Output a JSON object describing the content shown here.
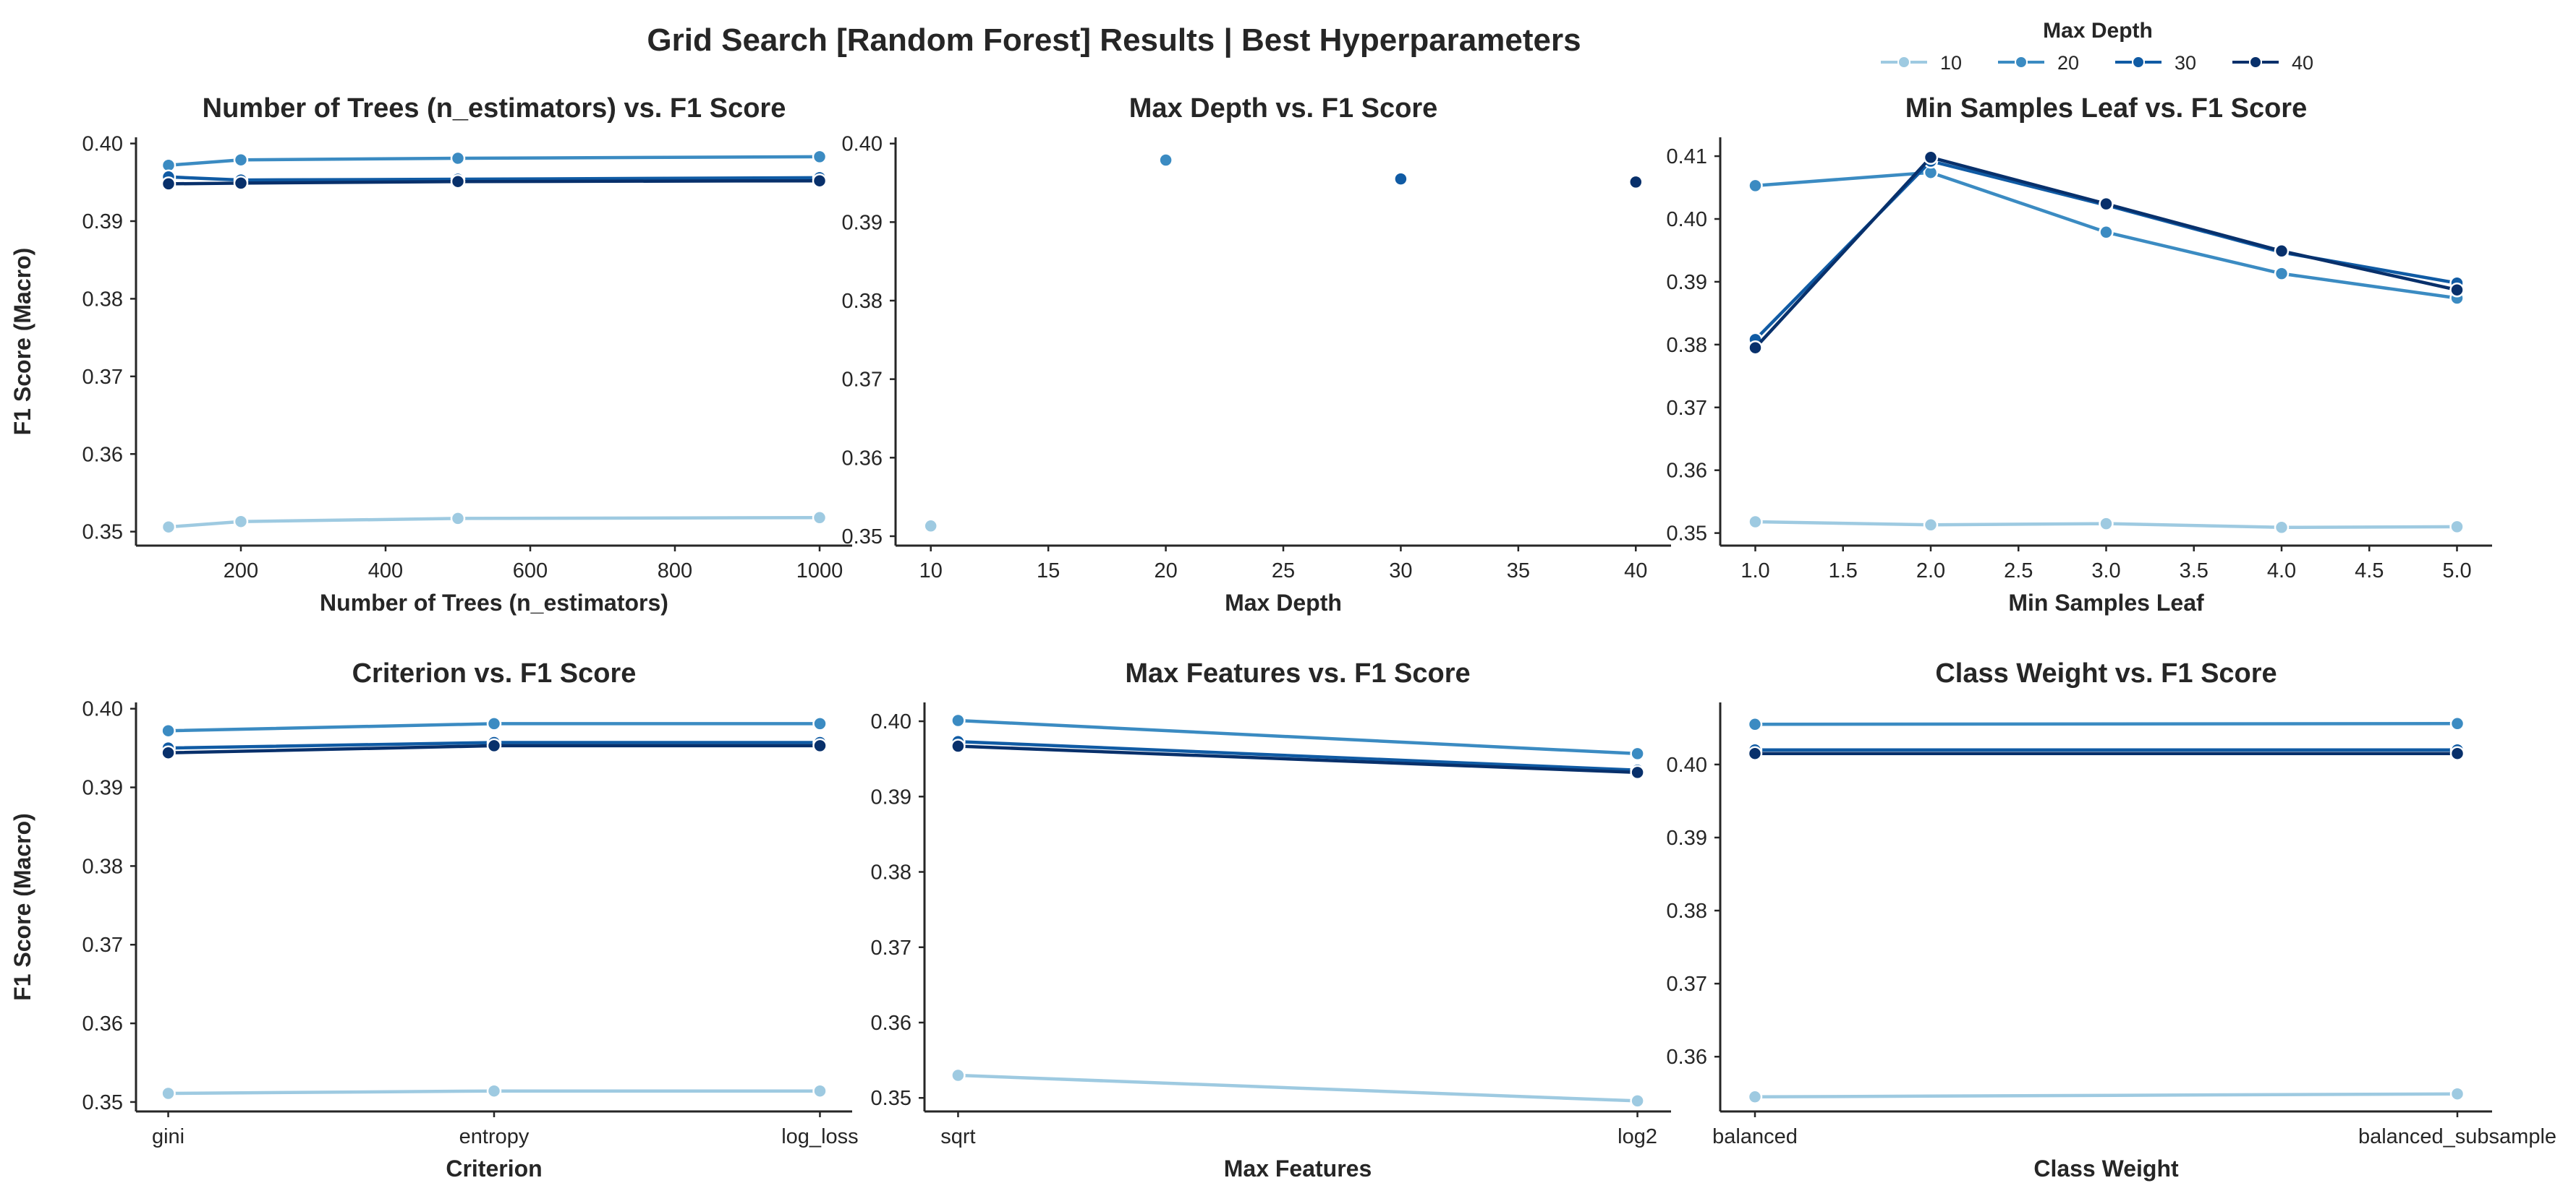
{
  "figure": {
    "title": "Grid Search [Random Forest] Results | Best Hyperparameters",
    "legend": {
      "title": "Max Depth",
      "placement": "top-right",
      "entries": [
        {
          "label": "10",
          "color": "#9ecae1"
        },
        {
          "label": "20",
          "color": "#3b8bc2"
        },
        {
          "label": "30",
          "color": "#105ba4"
        },
        {
          "label": "40",
          "color": "#08306b"
        }
      ]
    }
  },
  "chart_data": [
    {
      "type": "line",
      "title": "Number of Trees (n_estimators) vs. F1 Score",
      "xlabel": "Number of Trees (n_estimators)",
      "ylabel": "F1 Score (Macro)",
      "x_kind": "numeric",
      "xlim": [
        55,
        1045
      ],
      "xticks": [
        200,
        400,
        600,
        800,
        1000
      ],
      "xtick_labels": [
        "200",
        "400",
        "600",
        "800",
        "1000"
      ],
      "ylim": [
        0.3482,
        0.4008
      ],
      "yticks": [
        0.35,
        0.36,
        0.37,
        0.38,
        0.39,
        0.4
      ],
      "ytick_labels": [
        "0.35",
        "0.36",
        "0.37",
        "0.38",
        "0.39",
        "0.40"
      ],
      "series": [
        {
          "name": "10",
          "x": [
            100,
            200,
            500,
            1000
          ],
          "y": [
            0.3506,
            0.3513,
            0.3517,
            0.3518
          ]
        },
        {
          "name": "20",
          "x": [
            100,
            200,
            500,
            1000
          ],
          "y": [
            0.3972,
            0.3979,
            0.3981,
            0.3983
          ]
        },
        {
          "name": "30",
          "x": [
            100,
            200,
            500,
            1000
          ],
          "y": [
            0.3957,
            0.3953,
            0.3954,
            0.3956
          ]
        },
        {
          "name": "40",
          "x": [
            100,
            200,
            500,
            1000
          ],
          "y": [
            0.3948,
            0.3949,
            0.3951,
            0.3952
          ]
        }
      ],
      "grid": false
    },
    {
      "type": "scatter",
      "title": "Max Depth vs. F1 Score",
      "xlabel": "Max Depth",
      "ylabel": "",
      "x_kind": "numeric",
      "xlim": [
        8.5,
        41.5
      ],
      "xticks": [
        10,
        15,
        20,
        25,
        30,
        35,
        40
      ],
      "xtick_labels": [
        "10",
        "15",
        "20",
        "25",
        "30",
        "35",
        "40"
      ],
      "ylim": [
        0.3488,
        0.4008
      ],
      "yticks": [
        0.35,
        0.36,
        0.37,
        0.38,
        0.39,
        0.4
      ],
      "ytick_labels": [
        "0.35",
        "0.36",
        "0.37",
        "0.38",
        "0.39",
        "0.40"
      ],
      "series": [
        {
          "name": "10",
          "x": [
            10
          ],
          "y": [
            0.3513
          ]
        },
        {
          "name": "20",
          "x": [
            20
          ],
          "y": [
            0.3979
          ]
        },
        {
          "name": "30",
          "x": [
            30
          ],
          "y": [
            0.3955
          ]
        },
        {
          "name": "40",
          "x": [
            40
          ],
          "y": [
            0.3951
          ]
        }
      ],
      "grid": false
    },
    {
      "type": "line",
      "title": "Min Samples Leaf vs. F1 Score",
      "xlabel": "Min Samples Leaf",
      "ylabel": "",
      "x_kind": "numeric",
      "xlim": [
        0.8,
        5.2
      ],
      "xticks": [
        1.0,
        1.5,
        2.0,
        2.5,
        3.0,
        3.5,
        4.0,
        4.5,
        5.0
      ],
      "xtick_labels": [
        "1.0",
        "1.5",
        "2.0",
        "2.5",
        "3.0",
        "3.5",
        "4.0",
        "4.5",
        "5.0"
      ],
      "ylim": [
        0.348,
        0.413
      ],
      "yticks": [
        0.35,
        0.36,
        0.37,
        0.38,
        0.39,
        0.4,
        0.41
      ],
      "ytick_labels": [
        "0.35",
        "0.36",
        "0.37",
        "0.38",
        "0.39",
        "0.40",
        "0.41"
      ],
      "series": [
        {
          "name": "10",
          "x": [
            1,
            2,
            3,
            4,
            5
          ],
          "y": [
            0.3518,
            0.3513,
            0.3515,
            0.3509,
            0.351
          ]
        },
        {
          "name": "20",
          "x": [
            1,
            2,
            3,
            4,
            5
          ],
          "y": [
            0.4053,
            0.4074,
            0.3979,
            0.3913,
            0.3874
          ]
        },
        {
          "name": "30",
          "x": [
            1,
            2,
            3,
            4,
            5
          ],
          "y": [
            0.3808,
            0.4092,
            0.4022,
            0.3947,
            0.3898
          ]
        },
        {
          "name": "40",
          "x": [
            1,
            2,
            3,
            4,
            5
          ],
          "y": [
            0.3795,
            0.4098,
            0.4024,
            0.3949,
            0.3887
          ]
        }
      ],
      "grid": false
    },
    {
      "type": "line",
      "title": "Criterion vs. F1 Score",
      "xlabel": "Criterion",
      "ylabel": "F1 Score (Macro)",
      "x_kind": "categorical",
      "categories": [
        "gini",
        "entropy",
        "log_loss"
      ],
      "ylim": [
        0.3488,
        0.4008
      ],
      "yticks": [
        0.35,
        0.36,
        0.37,
        0.38,
        0.39,
        0.4
      ],
      "ytick_labels": [
        "0.35",
        "0.36",
        "0.37",
        "0.38",
        "0.39",
        "0.40"
      ],
      "series": [
        {
          "name": "10",
          "values": [
            0.3511,
            0.3514,
            0.3514
          ]
        },
        {
          "name": "20",
          "values": [
            0.3972,
            0.3981,
            0.3981
          ]
        },
        {
          "name": "30",
          "values": [
            0.395,
            0.3957,
            0.3957
          ]
        },
        {
          "name": "40",
          "values": [
            0.3944,
            0.3953,
            0.3953
          ]
        }
      ],
      "grid": false
    },
    {
      "type": "line",
      "title": "Max Features vs. F1 Score",
      "xlabel": "Max Features",
      "ylabel": "",
      "x_kind": "categorical",
      "categories": [
        "sqrt",
        "log2"
      ],
      "ylim": [
        0.3482,
        0.4025
      ],
      "yticks": [
        0.35,
        0.36,
        0.37,
        0.38,
        0.39,
        0.4
      ],
      "ytick_labels": [
        "0.35",
        "0.36",
        "0.37",
        "0.38",
        "0.39",
        "0.40"
      ],
      "series": [
        {
          "name": "10",
          "values": [
            0.353,
            0.3496
          ]
        },
        {
          "name": "20",
          "values": [
            0.4001,
            0.3957
          ]
        },
        {
          "name": "30",
          "values": [
            0.3973,
            0.3935
          ]
        },
        {
          "name": "40",
          "values": [
            0.3967,
            0.3932
          ]
        }
      ],
      "grid": false
    },
    {
      "type": "line",
      "title": "Class Weight vs. F1 Score",
      "xlabel": "Class Weight",
      "ylabel": "",
      "x_kind": "categorical",
      "categories": [
        "balanced",
        "balanced_subsample"
      ],
      "ylim": [
        0.3525,
        0.4085
      ],
      "yticks": [
        0.36,
        0.37,
        0.38,
        0.39,
        0.4
      ],
      "ytick_labels": [
        "0.36",
        "0.37",
        "0.38",
        "0.39",
        "0.40"
      ],
      "series": [
        {
          "name": "10",
          "values": [
            0.3545,
            0.3549
          ]
        },
        {
          "name": "20",
          "values": [
            0.4055,
            0.4056
          ]
        },
        {
          "name": "30",
          "values": [
            0.402,
            0.402
          ]
        },
        {
          "name": "40",
          "values": [
            0.4015,
            0.4015
          ]
        }
      ],
      "grid": false
    }
  ]
}
